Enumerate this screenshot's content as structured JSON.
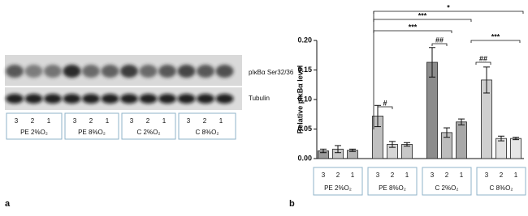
{
  "blot": {
    "bands": [
      "pIκBα Ser32/36",
      "Tubulin"
    ],
    "lanes": [
      "3",
      "2",
      "1"
    ],
    "groups": [
      "PE 2%O₂",
      "PE 8%O₂",
      "C 2%O₂",
      "C 8%O₂"
    ],
    "panel_label": "a"
  },
  "chart_data": {
    "type": "bar",
    "panel_label": "b",
    "y_label": "Relative pIκBα level",
    "groups": [
      "PE 2%O₂",
      "PE 8%O₂",
      "C 2%O₂",
      "C 8%O₂"
    ],
    "categories": [
      "3",
      "2",
      "1",
      "3",
      "2",
      "1",
      "3",
      "2",
      "1",
      "3",
      "2",
      "1"
    ],
    "values": [
      0.013,
      0.016,
      0.014,
      0.072,
      0.024,
      0.024,
      0.163,
      0.044,
      0.062,
      0.133,
      0.034,
      0.034
    ],
    "errors": [
      0.003,
      0.006,
      0.002,
      0.018,
      0.005,
      0.003,
      0.025,
      0.008,
      0.005,
      0.022,
      0.004,
      0.002
    ],
    "colors": [
      "#9a9a9a",
      "#c8c8c8",
      "#b4b4b4",
      "#c0c0c0",
      "#d6d6d6",
      "#c8c8c8",
      "#8c8c8c",
      "#bdbdbd",
      "#a8a8a8",
      "#cfcfcf",
      "#e2e2e2",
      "#e6e6e6"
    ],
    "ylim": [
      0,
      0.2
    ],
    "yticks": [
      {
        "value": 0,
        "label": "0.00"
      },
      {
        "value": 0.05,
        "label": "0.05"
      },
      {
        "value": 0.1,
        "label": "0.10"
      },
      {
        "value": 0.15,
        "label": "0.15"
      },
      {
        "value": 0.2,
        "label": "0.20"
      }
    ],
    "annotations": [
      "*",
      "***",
      "***",
      "***",
      "#",
      "##",
      "##"
    ]
  }
}
